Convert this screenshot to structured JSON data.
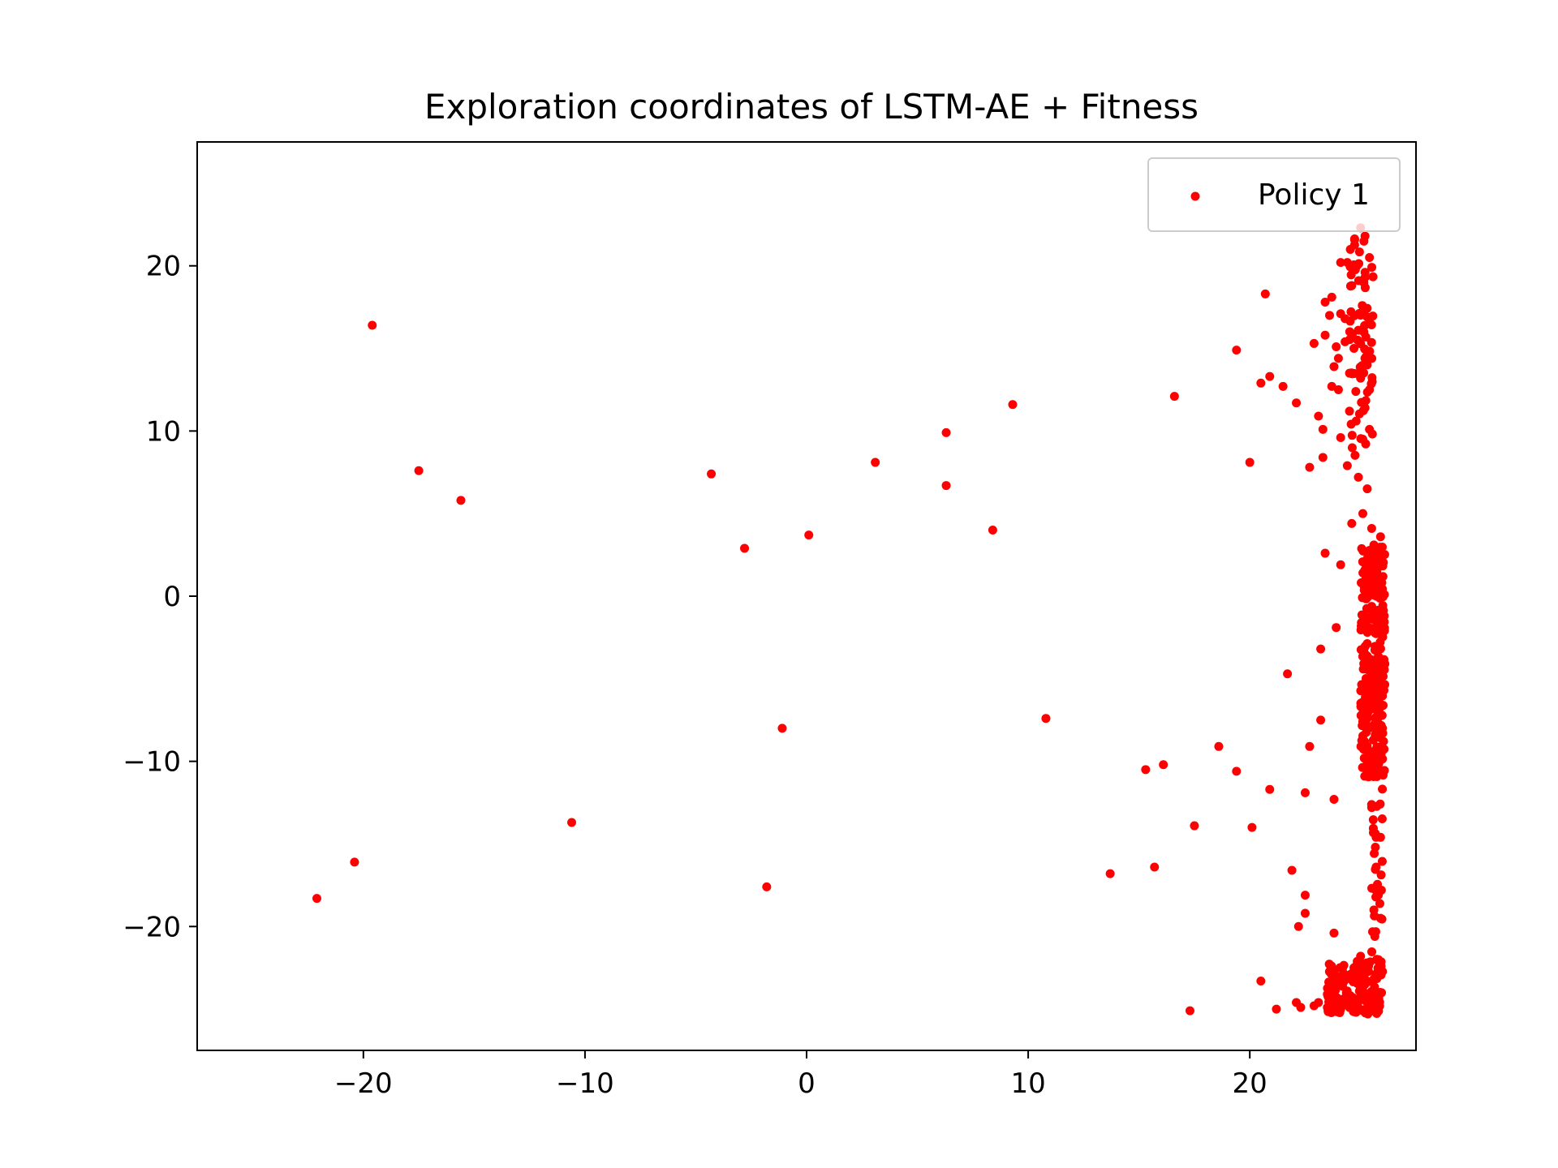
{
  "chart_data": {
    "type": "scatter",
    "title": "Exploration coordinates of LSTM-AE + Fitness",
    "xlabel": "",
    "ylabel": "",
    "xlim": [
      -27.5,
      27.5
    ],
    "ylim": [
      -27.5,
      27.5
    ],
    "xticks": [
      -20,
      -10,
      0,
      10,
      20
    ],
    "yticks": [
      -20,
      -10,
      0,
      10,
      20
    ],
    "xtick_labels": [
      "−20",
      "−10",
      "0",
      "10",
      "20"
    ],
    "ytick_labels": [
      "−20",
      "−10",
      "0",
      "10",
      "20"
    ],
    "grid": false,
    "legend_position": "upper right",
    "series": [
      {
        "name": "Policy 1",
        "color": "#ff0000",
        "marker": "circle",
        "points": [
          [
            -19.6,
            16.4
          ],
          [
            -17.5,
            7.6
          ],
          [
            -15.6,
            5.8
          ],
          [
            -22.1,
            -18.3
          ],
          [
            -20.4,
            -16.1
          ],
          [
            -10.6,
            -13.7
          ],
          [
            -4.3,
            7.4
          ],
          [
            -2.8,
            2.9
          ],
          [
            0.1,
            3.7
          ],
          [
            -1.1,
            -8.0
          ],
          [
            -1.8,
            -17.6
          ],
          [
            3.1,
            8.1
          ],
          [
            6.3,
            9.9
          ],
          [
            6.3,
            6.7
          ],
          [
            8.4,
            4.0
          ],
          [
            9.3,
            11.6
          ],
          [
            10.8,
            -7.4
          ],
          [
            13.7,
            -16.8
          ],
          [
            15.3,
            -10.5
          ],
          [
            15.7,
            -16.4
          ],
          [
            16.1,
            -10.2
          ],
          [
            16.6,
            12.1
          ],
          [
            17.3,
            -25.1
          ],
          [
            17.5,
            -13.9
          ],
          [
            18.6,
            -9.1
          ],
          [
            19.4,
            14.9
          ],
          [
            19.4,
            -10.6
          ],
          [
            20.0,
            8.1
          ],
          [
            20.1,
            -14.0
          ],
          [
            20.5,
            12.9
          ],
          [
            20.5,
            -23.3
          ],
          [
            20.7,
            18.3
          ],
          [
            20.9,
            13.3
          ],
          [
            20.9,
            -11.7
          ],
          [
            21.2,
            -25.0
          ],
          [
            21.5,
            12.7
          ],
          [
            21.7,
            -4.7
          ],
          [
            21.9,
            -16.6
          ],
          [
            22.1,
            11.7
          ],
          [
            22.1,
            -24.6
          ],
          [
            22.2,
            -20.0
          ],
          [
            22.3,
            -24.9
          ],
          [
            22.5,
            -18.1
          ],
          [
            22.5,
            -19.2
          ],
          [
            22.5,
            -11.9
          ],
          [
            22.7,
            7.8
          ],
          [
            22.7,
            -9.1
          ],
          [
            22.9,
            15.3
          ],
          [
            22.9,
            -24.8
          ],
          [
            23.1,
            10.9
          ],
          [
            23.1,
            -24.6
          ],
          [
            23.2,
            -3.2
          ],
          [
            23.2,
            -7.5
          ],
          [
            23.3,
            10.1
          ],
          [
            23.3,
            8.4
          ],
          [
            23.4,
            15.8
          ],
          [
            23.4,
            2.6
          ],
          [
            23.4,
            17.8
          ],
          [
            23.5,
            -24.9
          ],
          [
            23.5,
            -24.1
          ],
          [
            23.6,
            17.0
          ],
          [
            23.7,
            12.7
          ],
          [
            23.7,
            18.1
          ],
          [
            23.8,
            13.9
          ],
          [
            23.8,
            -12.3
          ],
          [
            23.8,
            -20.4
          ],
          [
            23.9,
            15.1
          ],
          [
            23.9,
            -1.9
          ],
          [
            24.0,
            12.5
          ],
          [
            24.0,
            14.4
          ],
          [
            24.0,
            -24.7
          ],
          [
            24.1,
            9.6
          ],
          [
            24.1,
            20.2
          ],
          [
            24.1,
            1.9
          ],
          [
            24.1,
            17.1
          ],
          [
            24.2,
            -24.4
          ],
          [
            24.3,
            16.8
          ],
          [
            24.3,
            15.4
          ],
          [
            24.4,
            20.2
          ],
          [
            24.4,
            7.9
          ],
          [
            24.5,
            13.5
          ],
          [
            24.5,
            11.2
          ],
          [
            24.5,
            -24.9
          ],
          [
            24.6,
            18.8
          ],
          [
            24.6,
            4.4
          ],
          [
            24.7,
            -22.5
          ],
          [
            24.7,
            15.0
          ],
          [
            24.8,
            10.6
          ],
          [
            24.8,
            -24.7
          ],
          [
            24.9,
            7.2
          ],
          [
            24.9,
            16.1
          ],
          [
            24.9,
            -25.0
          ],
          [
            25.0,
            22.3
          ],
          [
            25.0,
            13.2
          ],
          [
            25.0,
            -21.8
          ],
          [
            25.1,
            9.5
          ],
          [
            25.1,
            5.0
          ],
          [
            25.1,
            -25.1
          ],
          [
            25.2,
            21.8
          ],
          [
            25.2,
            19.3
          ],
          [
            25.2,
            11.4
          ],
          [
            25.2,
            -23.5
          ],
          [
            25.3,
            14.0
          ],
          [
            25.3,
            16.9
          ],
          [
            25.3,
            6.5
          ],
          [
            25.4,
            20.5
          ],
          [
            25.4,
            12.5
          ],
          [
            25.4,
            10.1
          ],
          [
            25.4,
            -24.6
          ],
          [
            25.5,
            4.1
          ],
          [
            25.5,
            2.0
          ],
          [
            25.5,
            -12.8
          ],
          [
            25.6,
            3.1
          ],
          [
            25.6,
            -19.0
          ],
          [
            25.6,
            -10.4
          ],
          [
            25.7,
            -14.6
          ],
          [
            25.7,
            -16.4
          ],
          [
            25.8,
            -18.1
          ],
          [
            25.8,
            -23.0
          ],
          [
            25.9,
            -19.5
          ],
          [
            25.9,
            3.6
          ],
          [
            25.9,
            -14.6
          ],
          [
            26.0,
            -8.3
          ]
        ],
        "dense_clusters": [
          {
            "x_range": [
              25.0,
              26.1
            ],
            "y_range": [
              -11.0,
              3.0
            ],
            "count": 320
          },
          {
            "x_range": [
              23.5,
              26.0
            ],
            "y_range": [
              -25.3,
              -22.0
            ],
            "count": 140
          },
          {
            "x_range": [
              24.5,
              25.6
            ],
            "y_range": [
              8.5,
              22.0
            ],
            "count": 70
          },
          {
            "x_range": [
              25.4,
              26.0
            ],
            "y_range": [
              -23.0,
              -11.0
            ],
            "count": 30
          }
        ]
      }
    ]
  }
}
